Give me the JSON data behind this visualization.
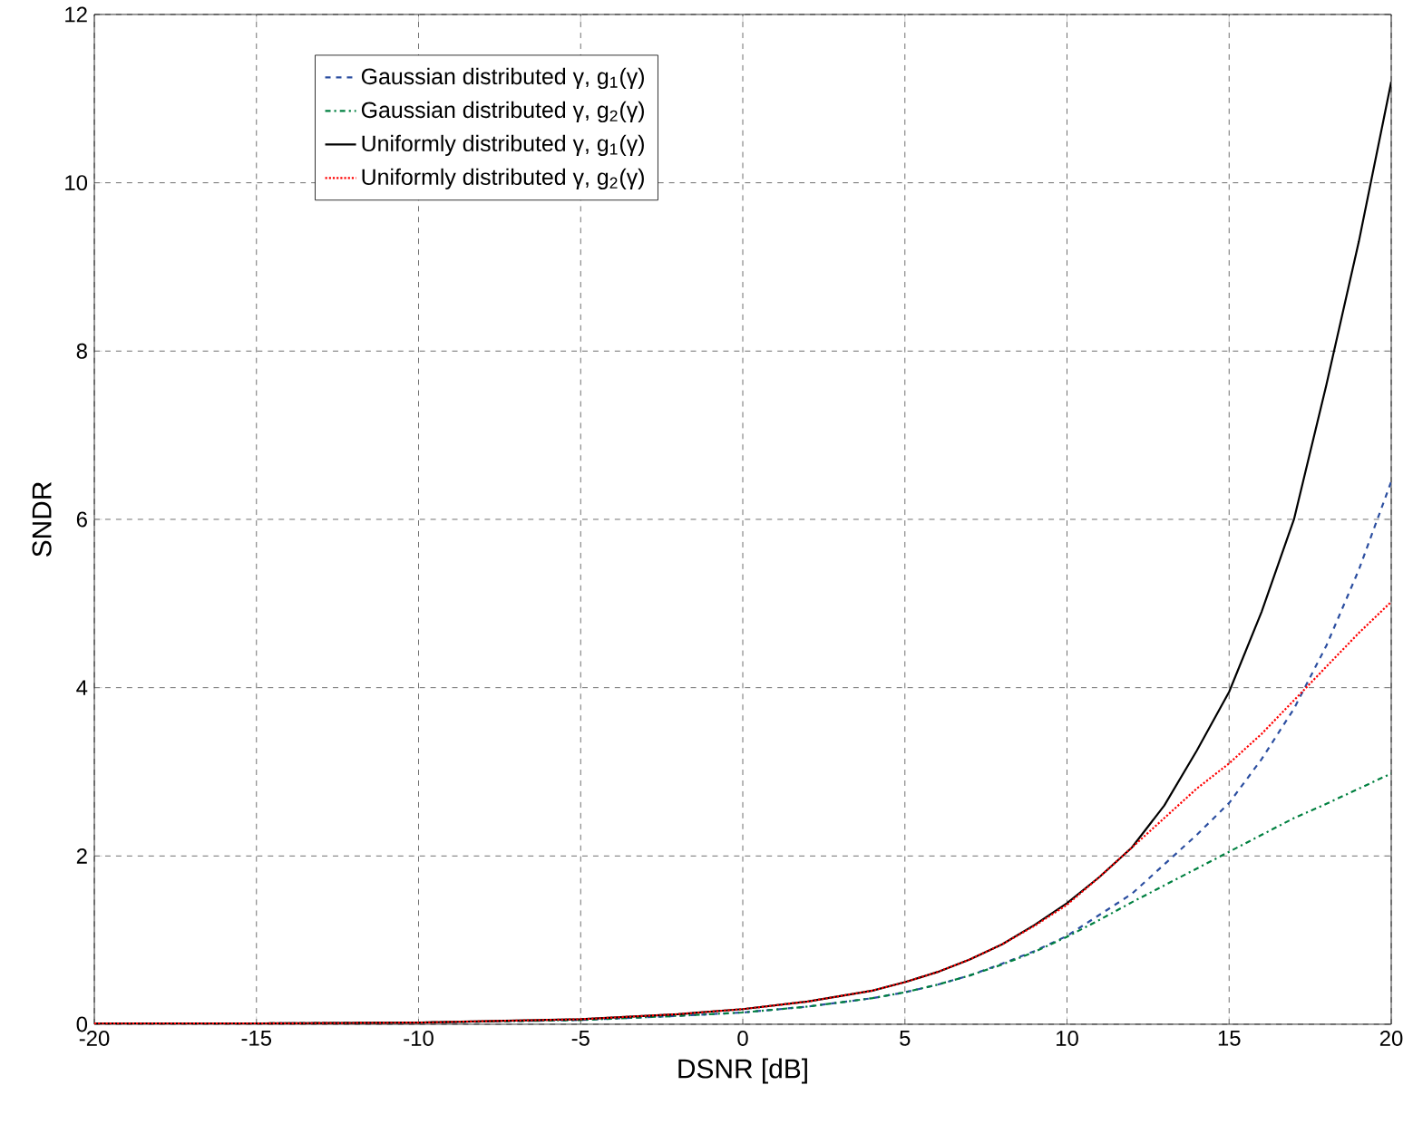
{
  "chart_data": {
    "type": "line",
    "xlabel": "DSNR [dB]",
    "ylabel": "SNDR",
    "xlim": [
      -20,
      20
    ],
    "ylim": [
      0,
      12
    ],
    "xticks": [
      -20,
      -15,
      -10,
      -5,
      0,
      5,
      10,
      15,
      20
    ],
    "yticks": [
      0,
      2,
      4,
      6,
      8,
      10,
      12
    ],
    "grid": true,
    "legend": "top left",
    "marker": "none",
    "x": [
      -20,
      -15,
      -10,
      -5,
      -2,
      0,
      2,
      4,
      5,
      6,
      7,
      8,
      9,
      10,
      11,
      12,
      13,
      14,
      15,
      16,
      17,
      18,
      19,
      20
    ],
    "series": [
      {
        "name": "Gaussian distributed γ, g$_{1}$(γ)",
        "color": "#2b4ea0",
        "line_style": "dashed",
        "values": [
          0.01,
          0.01,
          0.02,
          0.05,
          0.1,
          0.14,
          0.21,
          0.31,
          0.38,
          0.47,
          0.58,
          0.72,
          0.87,
          1.05,
          1.3,
          1.55,
          1.9,
          2.25,
          2.63,
          3.15,
          3.75,
          4.5,
          5.4,
          6.45
        ]
      },
      {
        "name": "Gaussian distributed γ, g$_{2}$(γ)",
        "color": "#008040",
        "line_style": "dashdot",
        "values": [
          0.01,
          0.01,
          0.02,
          0.05,
          0.1,
          0.14,
          0.21,
          0.31,
          0.38,
          0.47,
          0.58,
          0.71,
          0.86,
          1.04,
          1.24,
          1.45,
          1.65,
          1.85,
          2.05,
          2.25,
          2.45,
          2.62,
          2.8,
          2.98
        ]
      },
      {
        "name": "Uniformly distributed γ, g$_{1}$(γ)",
        "color": "#000000",
        "line_style": "solid",
        "values": [
          0.01,
          0.01,
          0.02,
          0.06,
          0.12,
          0.18,
          0.27,
          0.4,
          0.5,
          0.62,
          0.77,
          0.95,
          1.18,
          1.44,
          1.75,
          2.1,
          2.6,
          3.25,
          3.95,
          4.9,
          6.0,
          7.6,
          9.3,
          11.2
        ]
      },
      {
        "name": "Uniformly distributed γ, g$_{2}$(γ)",
        "color": "#ff0000",
        "line_style": "dotted",
        "values": [
          0.01,
          0.01,
          0.02,
          0.06,
          0.12,
          0.18,
          0.27,
          0.4,
          0.5,
          0.62,
          0.77,
          0.95,
          1.17,
          1.42,
          1.75,
          2.1,
          2.45,
          2.8,
          3.1,
          3.45,
          3.85,
          4.25,
          4.65,
          5.02
        ]
      }
    ]
  }
}
